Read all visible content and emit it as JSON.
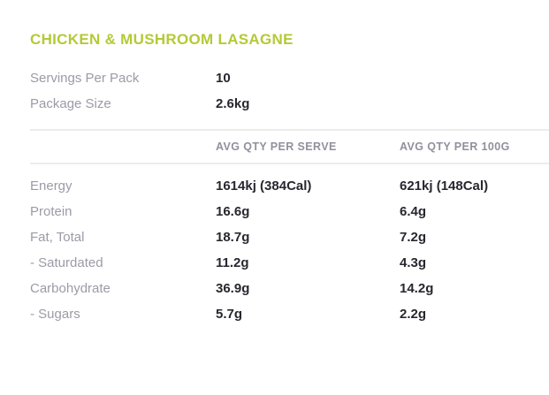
{
  "title": "CHICKEN & MUSHROOM LASAGNE",
  "colors": {
    "accent": "#b4ca35",
    "label_gray": "#9b9ba7",
    "header_gray": "#91919e",
    "value_dark": "#27272f",
    "divider": "#ececec",
    "background": "#ffffff"
  },
  "pack_info": {
    "rows": [
      {
        "label": "Servings Per Pack",
        "value": "10"
      },
      {
        "label": "Package Size",
        "value": "2.6kg"
      }
    ]
  },
  "nutrition_table": {
    "columns": [
      "",
      "AVG QTY PER SERVE",
      "AVG QTY PER 100G"
    ],
    "rows": [
      {
        "label": "Energy",
        "per_serve": "1614kj (384Cal)",
        "per_100g": "621kj (148Cal)"
      },
      {
        "label": "Protein",
        "per_serve": "16.6g",
        "per_100g": "6.4g"
      },
      {
        "label": "Fat, Total",
        "per_serve": "18.7g",
        "per_100g": "7.2g"
      },
      {
        "label": "- Saturdated",
        "per_serve": "11.2g",
        "per_100g": "4.3g"
      },
      {
        "label": "Carbohydrate",
        "per_serve": "36.9g",
        "per_100g": "14.2g"
      },
      {
        "label": "- Sugars",
        "per_serve": "5.7g",
        "per_100g": "2.2g"
      }
    ]
  }
}
